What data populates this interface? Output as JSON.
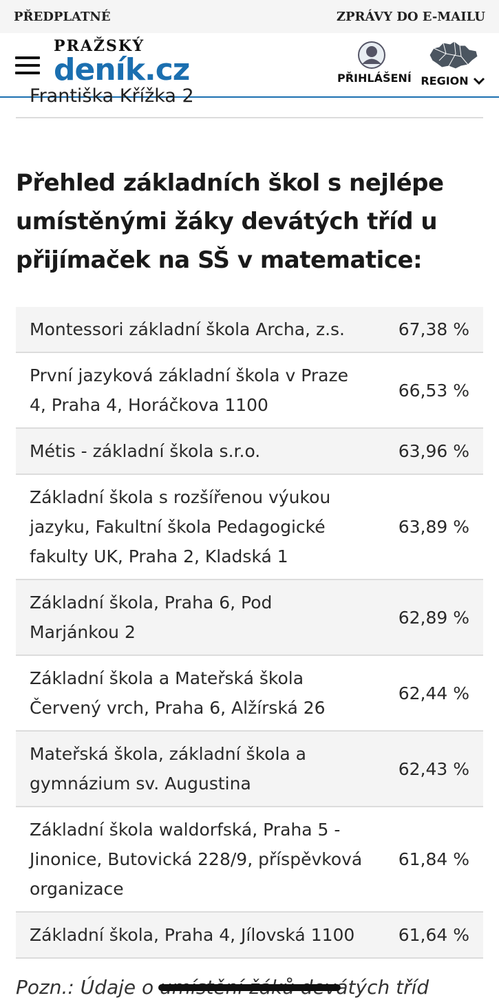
{
  "topbar": {
    "left": "PŘEDPLATNÉ",
    "right": "ZPRÁVY DO E-MAILU"
  },
  "header": {
    "logo_line1": "PRAŽSKÝ",
    "logo_line2": "deník.cz",
    "login_label": "PŘIHLÁŠENÍ",
    "region_label": "REGION"
  },
  "clipped_row_text": "Františka Křížka 2",
  "heading": "Přehled základních škol s nejlépe umístěnými žáky devátých tříd u přijímaček na SŠ v matematice:",
  "rows": [
    {
      "name": "Montessori základní škola Archa, z.s.",
      "pct": "67,38 %"
    },
    {
      "name": "První jazyková základní škola v Praze 4, Praha 4, Horáčkova 1100",
      "pct": "66,53 %"
    },
    {
      "name": "Métis - základní škola s.r.o.",
      "pct": "63,96 %"
    },
    {
      "name": "Základní škola s rozšířenou výukou jazyku, Fakultní škola Pedagogické fakulty UK, Praha 2, Kladská 1",
      "pct": "63,89 %"
    },
    {
      "name": "Základní škola, Praha 6, Pod Marjánkou 2",
      "pct": "62,89 %"
    },
    {
      "name": "Základní škola a Mateřská škola Červený vrch, Praha 6, Alžírská 26",
      "pct": "62,44 %"
    },
    {
      "name": "Mateřská škola, základní škola a gymnázium sv. Augustina",
      "pct": "62,43 %"
    },
    {
      "name": "Základní škola waldorfská, Praha 5 - Jinonice, Butovická 228/9, příspěvková organizace",
      "pct": "61,84 %"
    },
    {
      "name": "Základní škola, Praha 4, Jílovská 1100",
      "pct": "61,64 %"
    }
  ],
  "note": "Pozn.: Údaje o umístění žáků devátých tříd"
}
